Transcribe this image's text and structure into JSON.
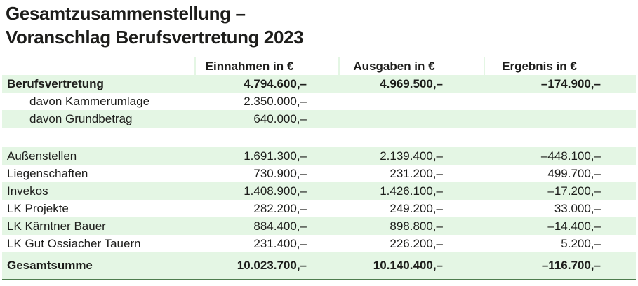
{
  "title": {
    "line1": "Gesamtzusammenstellung –",
    "line2": "Voranschlag Berufsvertretung 2023"
  },
  "colors": {
    "row_highlight_green": "#e4f6e4",
    "bottom_rule_green": "#4e7d4e",
    "text": "#1d1d1b"
  },
  "table": {
    "header": {
      "einnahmen": "Einnahmen in €",
      "ausgaben": "Ausgaben in €",
      "ergebnis": "Ergebnis in €"
    },
    "rows": [
      {
        "label": "Berufsvertretung",
        "einnahmen": "4.794.600,–",
        "ausgaben": "4.969.500,–",
        "ergebnis": "–174.900,–"
      },
      {
        "label": "davon Kammerumlage",
        "einnahmen": "2.350.000,–",
        "ausgaben": "",
        "ergebnis": ""
      },
      {
        "label": "davon Grundbetrag",
        "einnahmen": "640.000,–",
        "ausgaben": "",
        "ergebnis": ""
      },
      {
        "label": "Außenstellen",
        "einnahmen": "1.691.300,–",
        "ausgaben": "2.139.400,–",
        "ergebnis": "–448.100,–"
      },
      {
        "label": "Liegenschaften",
        "einnahmen": "730.900,–",
        "ausgaben": "231.200,–",
        "ergebnis": "499.700,–"
      },
      {
        "label": "Invekos",
        "einnahmen": "1.408.900,–",
        "ausgaben": "1.426.100,–",
        "ergebnis": "–17.200,–"
      },
      {
        "label": "LK Projekte",
        "einnahmen": "282.200,–",
        "ausgaben": "249.200,–",
        "ergebnis": "33.000,–"
      },
      {
        "label": "LK Kärntner Bauer",
        "einnahmen": "884.400,–",
        "ausgaben": "898.800,–",
        "ergebnis": "–14.400,–"
      },
      {
        "label": "LK Gut Ossiacher Tauern",
        "einnahmen": "231.400,–",
        "ausgaben": "226.200,–",
        "ergebnis": "5.200,–"
      },
      {
        "label": "Gesamtsumme",
        "einnahmen": "10.023.700,–",
        "ausgaben": "10.140.400,–",
        "ergebnis": "–116.700,–"
      }
    ]
  }
}
